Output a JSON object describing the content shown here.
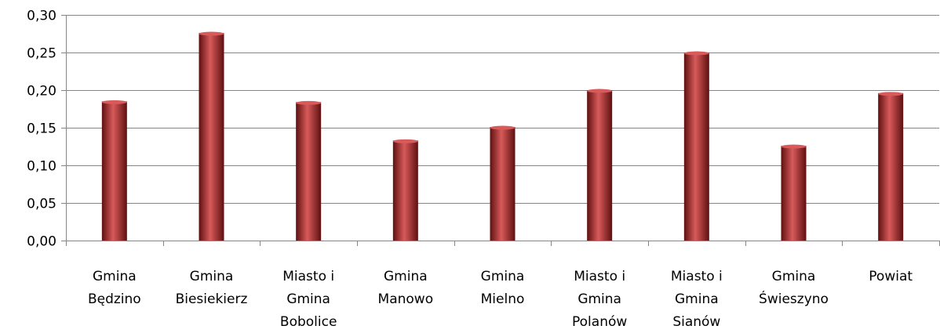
{
  "chart_data": {
    "type": "bar",
    "categories": [
      [
        "Gmina",
        "Będzino"
      ],
      [
        "Gmina",
        "Biesiekierz"
      ],
      [
        "Miasto i",
        "Gmina",
        "Bobolice"
      ],
      [
        "Gmina",
        "Manowo"
      ],
      [
        "Gmina",
        "Mielno"
      ],
      [
        "Miasto i",
        "Gmina",
        "Polanów"
      ],
      [
        "Miasto i",
        "Gmina",
        "Sianów"
      ],
      [
        "Gmina",
        "Świeszyno"
      ],
      [
        "Powiat"
      ]
    ],
    "values": [
      0.185,
      0.276,
      0.184,
      0.133,
      0.151,
      0.2,
      0.25,
      0.126,
      0.196
    ],
    "ylim": [
      0,
      0.3
    ],
    "yticks": [
      "0,00",
      "0,05",
      "0,10",
      "0,15",
      "0,20",
      "0,25",
      "0,30"
    ],
    "title": "",
    "xlabel": "",
    "ylabel": "",
    "grid": true,
    "bar_color": "#9b2222",
    "bar_highlight": "#d85a5a",
    "bar_shadow": "#5e1010"
  }
}
